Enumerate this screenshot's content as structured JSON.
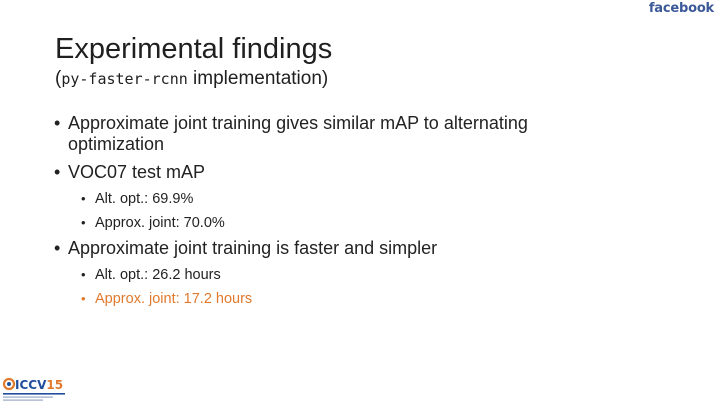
{
  "brand": {
    "text": "facebook",
    "color": "#3b5998"
  },
  "slide": {
    "title": "Experimental findings",
    "subtitle_open": "(",
    "subtitle_code": "py-faster-rcnn",
    "subtitle_rest": " implementation)"
  },
  "bullets": {
    "b1": "Approximate joint training gives similar mAP to alternating optimization",
    "b2": "VOC07 test mAP",
    "b2_sub1": "Alt. opt.: 69.9%",
    "b2_sub2": "Approx. joint: 70.0%",
    "b3": "Approximate joint training is faster and simpler",
    "b3_sub1": "Alt. opt.: 26.2 hours",
    "b3_sub2": "Approx. joint: 17.2 hours"
  },
  "logo": {
    "text": "ICCV15",
    "accent_color": "#e07a2e",
    "primary_color": "#1f4e9c"
  }
}
